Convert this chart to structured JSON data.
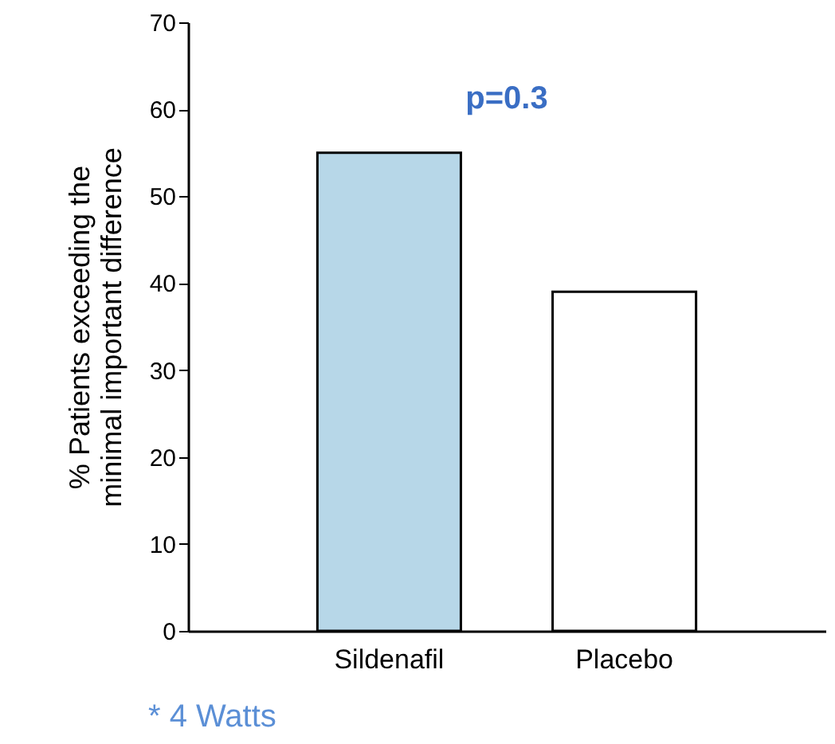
{
  "chart_data": {
    "type": "bar",
    "ylabel": "% Patients exceeding the\nminimal important difference",
    "categories": [
      "Sildenafil",
      "Placebo"
    ],
    "values": [
      55,
      39
    ],
    "colors": [
      "#b7d7e8",
      "#ffffff"
    ],
    "ylim": [
      0,
      70
    ],
    "yticks": [
      0,
      10,
      20,
      30,
      40,
      50,
      60,
      70
    ],
    "grid": false,
    "annotations": [
      "p=0.3",
      "* 4 Watts"
    ]
  }
}
